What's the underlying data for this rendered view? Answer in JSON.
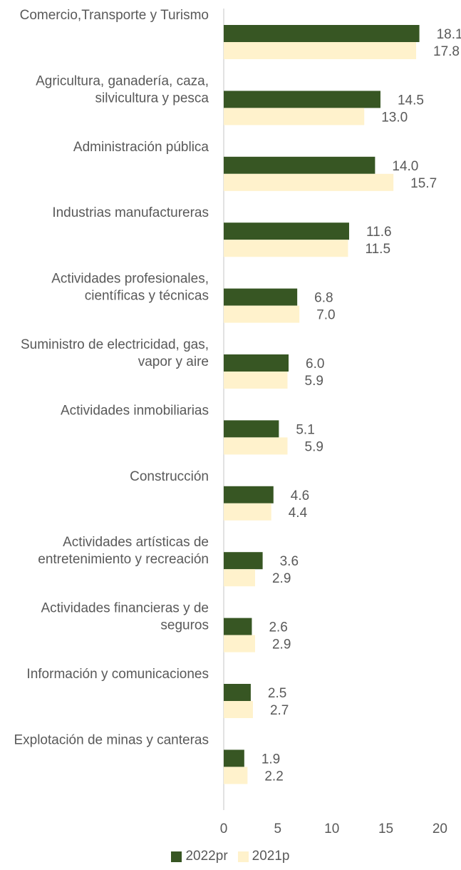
{
  "chart_data": {
    "type": "bar",
    "orientation": "horizontal",
    "categories": [
      [
        "Comercio,Transporte y Turismo"
      ],
      [
        "Agricultura, ganadería, caza,",
        "silvicultura y pesca"
      ],
      [
        "Administración pública"
      ],
      [
        "Industrias manufactureras"
      ],
      [
        "Actividades profesionales,",
        "científicas y técnicas"
      ],
      [
        "Suministro de electricidad, gas,",
        "vapor y aire"
      ],
      [
        "Actividades inmobiliarias"
      ],
      [
        "Construcción"
      ],
      [
        "Actividades artísticas de",
        "entretenimiento y recreación"
      ],
      [
        "Actividades financieras y de",
        "seguros"
      ],
      [
        "Información y comunicaciones"
      ],
      [
        "Explotación de minas y canteras"
      ]
    ],
    "series": [
      {
        "name": "2022pr",
        "color": "#375623",
        "values": [
          18.1,
          14.5,
          14.0,
          11.6,
          6.8,
          6.0,
          5.1,
          4.6,
          3.6,
          2.6,
          2.5,
          1.9
        ]
      },
      {
        "name": "2021p",
        "color": "#FFF2CC",
        "values": [
          17.8,
          13.0,
          15.7,
          11.5,
          7.0,
          5.9,
          5.9,
          4.4,
          2.9,
          2.9,
          2.7,
          2.2
        ]
      }
    ],
    "xlim": [
      0,
      20
    ],
    "xticks": [
      "0",
      "5",
      "10",
      "15",
      "20"
    ],
    "grid": false,
    "legend_position": "bottom",
    "axis_color": "#D9D9D9",
    "text_color": "#595959"
  }
}
